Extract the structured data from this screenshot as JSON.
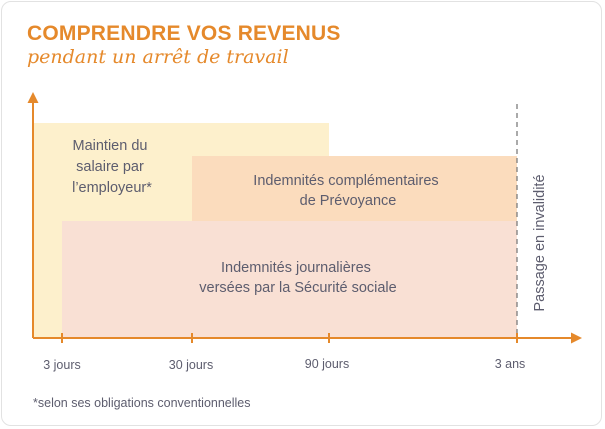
{
  "header": {
    "title": "COMPRENDRE VOS REVENUS",
    "subtitle": "pendant un arrêt de travail"
  },
  "blocks": {
    "employer": {
      "lines": [
        "Maintien du",
        "salaire par",
        "l’employeur*"
      ],
      "color": "#fdf0cc"
    },
    "prevoyance": {
      "lines": [
        "Indemnités complémentaires",
        "de Prévoyance"
      ],
      "color": "#fbdcbd"
    },
    "secu": {
      "lines": [
        "Indemnités journalières",
        "versées par la Sécurité sociale"
      ],
      "color": "#f9e0d4"
    }
  },
  "timeline": {
    "ticks": [
      "3 jours",
      "30 jours",
      "90 jours",
      "3 ans"
    ],
    "invalidity_label": "Passage en invalidité"
  },
  "colors": {
    "accent": "#e5892b",
    "text": "#5d5d6e",
    "dashed_line": "#7c7c7c"
  },
  "footnote": "*selon ses obligations conventionnelles"
}
